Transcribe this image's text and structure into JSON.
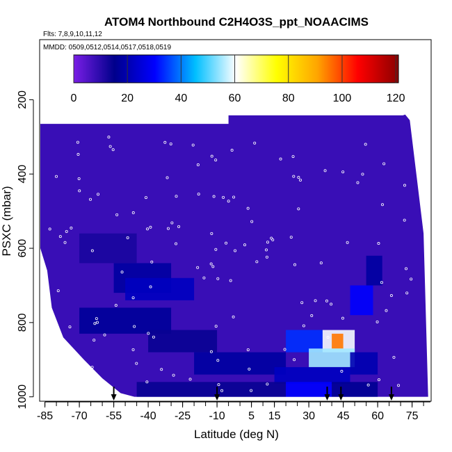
{
  "chart_data": {
    "type": "heatmap",
    "title": "ATOM4 Northbound C2H4O3S_ppt_NOAACIMS",
    "subtitle_flights": "Flts: 7,8,9,10,11,12",
    "subtitle_dates": "MMDD: 0509,0512,0514,0517,0518,0519",
    "xlabel": "Latitude (deg N)",
    "ylabel": "PSXC (mbar)",
    "x_ticks": [
      "-85",
      "-70",
      "-55",
      "-40",
      "-25",
      "-10",
      "5",
      "15",
      "30",
      "45",
      "60",
      "75"
    ],
    "x_tick_values": [
      -85,
      -70,
      -55,
      -40,
      -25,
      -10,
      5,
      15,
      30,
      45,
      60,
      75
    ],
    "y_ticks": [
      "200",
      "400",
      "600",
      "800",
      "1000"
    ],
    "y_tick_values": [
      200,
      400,
      600,
      800,
      1000
    ],
    "xlim": [
      -87,
      83
    ],
    "ylim": [
      1010,
      40
    ],
    "colorbar": {
      "ticks": [
        "0",
        "20",
        "40",
        "60",
        "80",
        "100",
        "120"
      ],
      "tick_values": [
        0,
        20,
        40,
        60,
        80,
        100,
        120
      ],
      "range": [
        0,
        121
      ],
      "colors": [
        "#7a1ee6",
        "#00008b",
        "#0000ff",
        "#00bfff",
        "#ffffff",
        "#ffff00",
        "#ffa500",
        "#ff0000",
        "#8b0000"
      ]
    },
    "background_value": 8,
    "cells": [
      {
        "lat": [
          -55,
          -30
        ],
        "p": [
          640,
          720
        ],
        "v": 18
      },
      {
        "lat": [
          -50,
          -20
        ],
        "p": [
          680,
          740
        ],
        "v": 22
      },
      {
        "lat": [
          -70,
          -45
        ],
        "p": [
          560,
          640
        ],
        "v": 12
      },
      {
        "lat": [
          -70,
          -30
        ],
        "p": [
          760,
          830
        ],
        "v": 17
      },
      {
        "lat": [
          -40,
          -10
        ],
        "p": [
          820,
          880
        ],
        "v": 14
      },
      {
        "lat": [
          -20,
          20
        ],
        "p": [
          880,
          940
        ],
        "v": 18
      },
      {
        "lat": [
          20,
          36
        ],
        "p": [
          820,
          880
        ],
        "v": 34
      },
      {
        "lat": [
          36,
          50
        ],
        "p": [
          820,
          880
        ],
        "v": 60
      },
      {
        "lat": [
          40,
          45
        ],
        "p": [
          830,
          870
        ],
        "v": 95
      },
      {
        "lat": [
          30,
          50
        ],
        "p": [
          870,
          920
        ],
        "v": 55
      },
      {
        "lat": [
          15,
          48
        ],
        "p": [
          920,
          965
        ],
        "v": 22
      },
      {
        "lat": [
          48,
          60
        ],
        "p": [
          880,
          940
        ],
        "v": 20
      },
      {
        "lat": [
          -45,
          20
        ],
        "p": [
          960,
          1000
        ],
        "v": 14
      },
      {
        "lat": [
          20,
          40
        ],
        "p": [
          960,
          1000
        ],
        "v": 30
      },
      {
        "lat": [
          40,
          60
        ],
        "p": [
          960,
          1000
        ],
        "v": 16
      },
      {
        "lat": [
          48,
          58
        ],
        "p": [
          700,
          780
        ],
        "v": 30
      },
      {
        "lat": [
          55,
          62
        ],
        "p": [
          620,
          700
        ],
        "v": 18
      }
    ],
    "flight_arrows_lat": [
      -55,
      -10,
      38,
      44,
      66
    ]
  }
}
